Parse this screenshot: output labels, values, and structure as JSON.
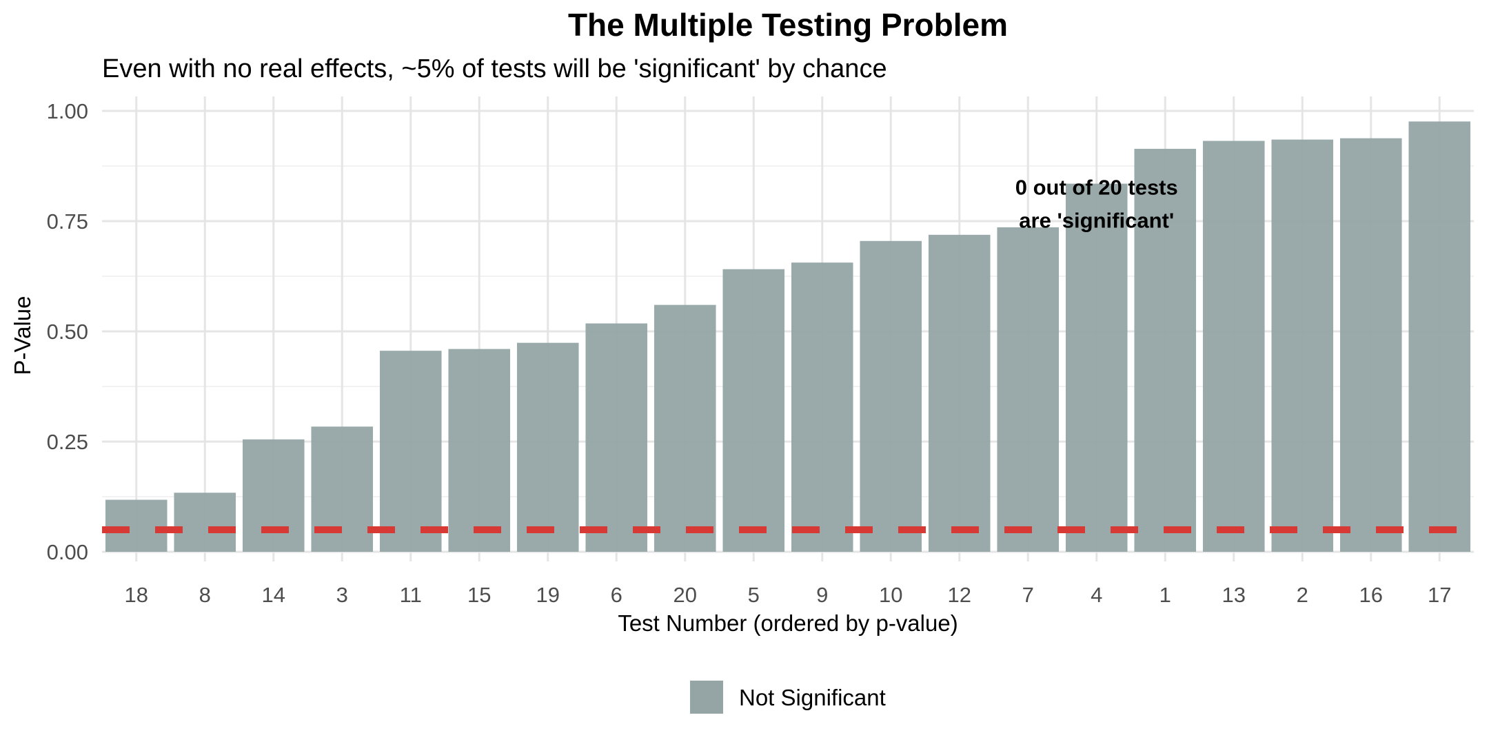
{
  "chart_data": {
    "type": "bar",
    "title": "The Multiple Testing Problem",
    "subtitle": "Even with no real effects, ~5% of tests will be 'significant' by chance",
    "xlabel": "Test Number (ordered by p-value)",
    "ylabel": "P-Value",
    "categories": [
      "18",
      "8",
      "14",
      "3",
      "11",
      "15",
      "19",
      "6",
      "20",
      "5",
      "9",
      "10",
      "12",
      "7",
      "4",
      "1",
      "13",
      "2",
      "16",
      "17"
    ],
    "values": [
      0.118,
      0.134,
      0.255,
      0.284,
      0.456,
      0.46,
      0.474,
      0.518,
      0.56,
      0.641,
      0.656,
      0.705,
      0.719,
      0.736,
      0.835,
      0.914,
      0.932,
      0.935,
      0.938,
      0.976
    ],
    "ylim": [
      0,
      1
    ],
    "yticks": [
      "0.00",
      "0.25",
      "0.50",
      "0.75",
      "1.00"
    ],
    "threshold": {
      "value": 0.05,
      "color": "#d73a35",
      "style": "dashed"
    },
    "bar_color": "#95a5a6",
    "annotation": {
      "lines": [
        "0 out of 20 tests",
        "are 'significant'"
      ],
      "x_category": "7",
      "y": 0.79
    },
    "legend": {
      "position": "bottom",
      "entries": [
        {
          "label": "Not Significant",
          "color": "#95a5a6"
        }
      ]
    },
    "grid": true
  }
}
